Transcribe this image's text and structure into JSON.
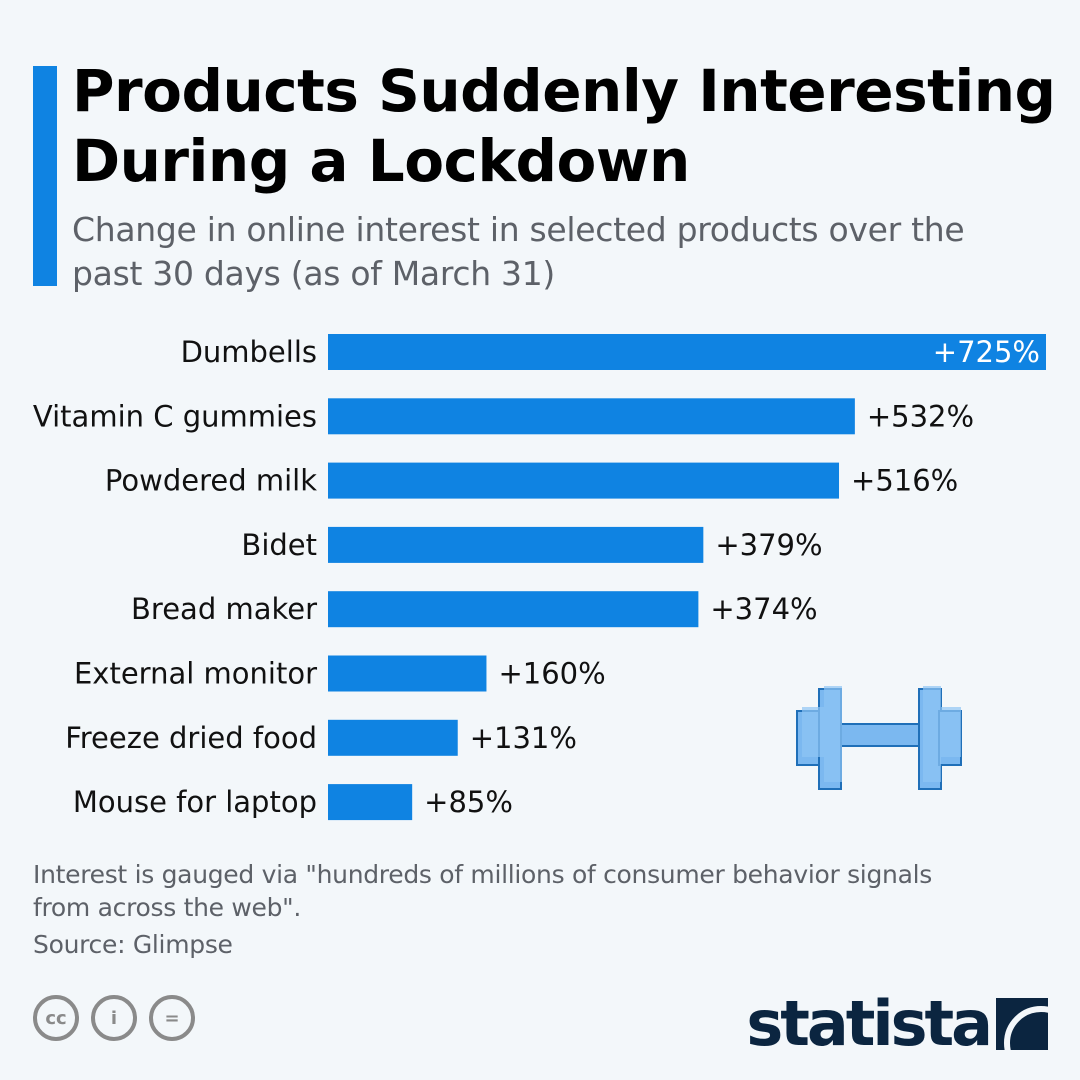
{
  "header": {
    "title": "Products Suddenly Interesting During a Lockdown",
    "subtitle": "Change in online interest in selected products over the past 30 days (as of March 31)"
  },
  "colors": {
    "bar": "#0f83e2",
    "accent": "#0f83e2",
    "background": "#f3f7fa",
    "brand_dark": "#0b2540"
  },
  "chart_data": {
    "type": "bar",
    "orientation": "horizontal",
    "title": "Products Suddenly Interesting During a Lockdown",
    "subtitle": "Change in online interest in selected products over the past 30 days (as of March 31)",
    "xlabel": "",
    "ylabel": "",
    "unit": "%",
    "categories": [
      "Dumbells",
      "Vitamin C gummies",
      "Powdered milk",
      "Bidet",
      "Bread maker",
      "External monitor",
      "Freeze dried food",
      "Mouse for laptop"
    ],
    "values": [
      725,
      532,
      516,
      379,
      374,
      160,
      131,
      85
    ],
    "value_labels": [
      "+725%",
      "+532%",
      "+516%",
      "+379%",
      "+374%",
      "+160%",
      "+131%",
      "+85%"
    ],
    "xlim": [
      0,
      725
    ],
    "grid": false,
    "legend": "none"
  },
  "illustration": {
    "icon": "dumbbell-icon"
  },
  "footer": {
    "note": "Interest is gauged via \"hundreds of millions of consumer behavior signals from across the web\".",
    "source": "Source: Glimpse",
    "license_icons": [
      "cc",
      "by",
      "nd"
    ],
    "license_glyphs": [
      "cc",
      "i",
      "="
    ],
    "brand": "statista"
  }
}
